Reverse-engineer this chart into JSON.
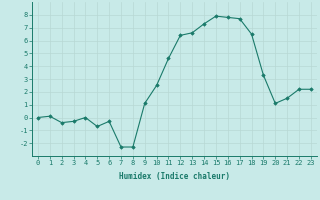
{
  "x": [
    0,
    1,
    2,
    3,
    4,
    5,
    6,
    7,
    8,
    9,
    10,
    11,
    12,
    13,
    14,
    15,
    16,
    17,
    18,
    19,
    20,
    21,
    22,
    23
  ],
  "y": [
    0,
    0.1,
    -0.4,
    -0.3,
    0,
    -0.7,
    -0.3,
    -2.3,
    -2.3,
    1.1,
    2.5,
    4.6,
    6.4,
    6.6,
    7.3,
    7.9,
    7.8,
    7.7,
    6.5,
    3.3,
    1.1,
    1.5,
    2.2,
    2.2
  ],
  "line_color": "#1a7a6a",
  "marker": "D",
  "marker_size": 1.8,
  "bg_color": "#c8eae8",
  "grid_color": "#b8d8d4",
  "xlabel": "Humidex (Indice chaleur)",
  "ylabel": "",
  "title": "",
  "xlim": [
    -0.5,
    23.5
  ],
  "ylim": [
    -3,
    9
  ],
  "yticks": [
    -2,
    -1,
    0,
    1,
    2,
    3,
    4,
    5,
    6,
    7,
    8
  ],
  "xticks": [
    0,
    1,
    2,
    3,
    4,
    5,
    6,
    7,
    8,
    9,
    10,
    11,
    12,
    13,
    14,
    15,
    16,
    17,
    18,
    19,
    20,
    21,
    22,
    23
  ],
  "tick_color": "#1a7a6a",
  "label_fontsize": 5.5,
  "tick_fontsize": 5.0
}
